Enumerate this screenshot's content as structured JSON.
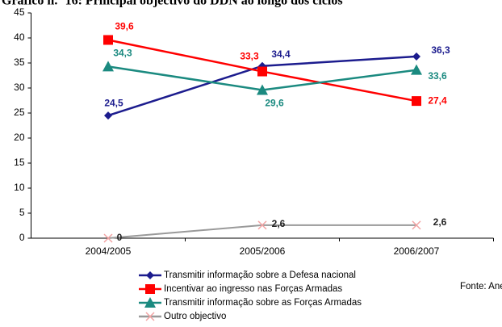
{
  "chart_data": {
    "type": "line",
    "title": "Gráfico n.º 16: Principal objectivo do DDN ao longo dos ciclos",
    "categories": [
      "2004/2005",
      "2005/2006",
      "2006/2007"
    ],
    "series": [
      {
        "name": "Transmitir informação sobre a Defesa nacional",
        "color": "#1c1c8e",
        "marker": "diamond",
        "values": [
          24.5,
          34.4,
          36.3
        ],
        "value_labels": [
          "24,5",
          "34,4",
          "36,3"
        ]
      },
      {
        "name": "Incentivar ao ingresso nas Forças Armadas",
        "color": "#ff0000",
        "marker": "square",
        "values": [
          39.6,
          33.3,
          27.4
        ],
        "value_labels": [
          "39,6",
          "33,3",
          "27,4"
        ]
      },
      {
        "name": "Transmitir informação sobre as Forças Armadas",
        "color": "#1b8a80",
        "marker": "triangle",
        "values": [
          34.3,
          29.6,
          33.6
        ],
        "value_labels": [
          "34,3",
          "29,6",
          "33,6"
        ]
      },
      {
        "name": "Outro objectivo",
        "color": "#9a9a9a",
        "marker": "x",
        "marker_color": "#f2a3a3",
        "label_color": "#222222",
        "values": [
          0,
          2.6,
          2.6
        ],
        "value_labels": [
          "0",
          "2,6",
          "2,6"
        ]
      }
    ],
    "ylim": [
      0,
      45
    ],
    "yticks": [
      0,
      5,
      10,
      15,
      20,
      25,
      30,
      35,
      40,
      45
    ],
    "source": "Fonte: Anexo"
  }
}
